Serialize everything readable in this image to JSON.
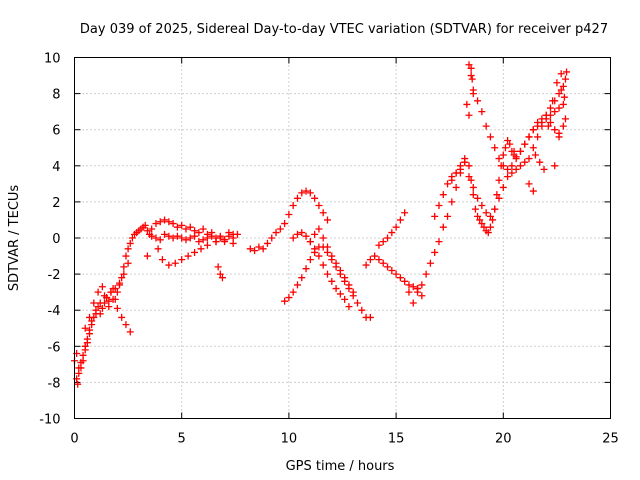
{
  "chart_data": {
    "type": "scatter",
    "title": "Day 039 of 2025, Sidereal Day-to-day VTEC variation (SDTVAR) for receiver p427",
    "xlabel": "GPS time / hours",
    "ylabel": "SDTVAR / TECUs",
    "xlim": [
      0,
      25
    ],
    "ylim": [
      -10,
      10
    ],
    "xticks": [
      "0",
      "5",
      "10",
      "15",
      "20",
      "25"
    ],
    "yticks": [
      "-10",
      "-8",
      "-6",
      "-4",
      "-2",
      "0",
      "2",
      "4",
      "6",
      "8",
      "10"
    ],
    "grid": true,
    "marker": "+",
    "color": "#ff0000",
    "series": [
      {
        "name": "SDTVAR",
        "x": [
          0.0,
          0.1,
          0.15,
          0.2,
          0.3,
          0.4,
          0.5,
          0.6,
          0.7,
          0.8,
          0.9,
          1.0,
          1.1,
          1.2,
          1.3,
          1.4,
          1.5,
          1.6,
          1.7,
          1.8,
          1.9,
          2.0,
          2.1,
          2.2,
          2.3,
          2.4,
          2.5,
          2.6,
          2.7,
          2.8,
          2.9,
          3.0,
          3.1,
          3.2,
          3.3,
          3.4,
          3.5,
          3.6,
          3.8,
          4.0,
          4.2,
          4.4,
          4.6,
          4.8,
          5.0,
          5.2,
          5.4,
          5.6,
          5.8,
          6.0,
          6.2,
          6.4,
          6.6,
          6.8,
          7.0,
          7.2,
          7.4,
          7.6,
          0.1,
          0.2,
          0.3,
          0.4,
          0.5,
          0.6,
          0.7,
          0.8,
          1.0,
          1.2,
          1.4,
          1.6,
          1.8,
          2.0,
          2.2,
          2.4,
          2.6,
          0.5,
          0.7,
          0.9,
          1.1,
          1.3,
          1.5,
          1.7,
          1.9,
          2.1,
          2.3,
          2.5,
          3.6,
          3.8,
          4.0,
          4.2,
          4.4,
          4.6,
          4.8,
          5.0,
          5.2,
          5.4,
          5.6,
          5.8,
          6.0,
          6.2,
          6.4,
          6.6,
          6.8,
          7.0,
          7.2,
          7.4,
          3.4,
          3.9,
          4.1,
          4.4,
          4.7,
          5.0,
          5.3,
          5.6,
          5.9,
          6.2,
          6.6,
          7.0,
          7.4,
          6.7,
          6.8,
          6.9,
          8.2,
          8.4,
          8.6,
          8.8,
          9.0,
          9.2,
          9.4,
          9.6,
          9.8,
          10.0,
          10.2,
          10.4,
          10.6,
          10.8,
          11.0,
          11.2,
          11.4,
          11.6,
          11.8,
          9.8,
          10.0,
          10.2,
          10.4,
          10.6,
          10.8,
          11.0,
          11.2,
          11.4,
          11.6,
          11.8,
          12.0,
          12.2,
          12.4,
          12.6,
          12.8,
          13.0,
          13.2,
          13.4,
          13.6,
          13.8,
          10.2,
          10.4,
          10.6,
          10.8,
          11.0,
          11.2,
          11.4,
          11.6,
          11.8,
          12.0,
          12.2,
          12.4,
          12.6,
          12.8,
          11.0,
          11.2,
          11.4,
          11.6,
          11.8,
          12.0,
          12.2,
          12.4,
          12.6,
          12.8,
          13.0,
          13.6,
          13.8,
          14.0,
          14.2,
          14.4,
          14.6,
          14.8,
          15.0,
          15.2,
          15.4,
          15.6,
          15.8,
          16.0,
          16.2,
          14.2,
          14.4,
          14.6,
          14.8,
          15.0,
          15.2,
          15.4,
          15.6,
          15.8,
          16.0,
          16.0,
          16.2,
          16.4,
          16.6,
          16.8,
          17.0,
          17.2,
          17.4,
          17.6,
          17.8,
          18.0,
          18.2,
          16.8,
          17.0,
          17.2,
          17.4,
          17.6,
          17.8,
          18.0,
          18.2,
          18.4,
          18.5,
          18.6,
          18.7,
          18.8,
          18.9,
          19.0,
          19.1,
          19.2,
          19.3,
          19.4,
          19.5,
          19.6,
          19.7,
          19.8,
          19.9,
          20.0,
          20.1,
          20.2,
          20.3,
          20.4,
          20.5,
          20.6,
          20.8,
          21.0,
          21.2,
          21.4,
          21.6,
          21.8,
          22.0,
          22.2,
          22.4,
          22.6,
          22.8,
          22.9,
          18.4,
          18.5,
          18.6,
          18.8,
          19.0,
          19.2,
          19.4,
          19.6,
          19.8,
          20.0,
          20.2,
          20.4,
          20.6,
          20.8,
          21.0,
          21.2,
          21.4,
          21.6,
          21.8,
          22.0,
          22.2,
          22.4,
          22.6,
          22.8,
          17.6,
          17.8,
          18.0,
          18.2,
          18.4,
          18.6,
          18.8,
          19.0,
          19.2,
          19.4,
          19.6,
          19.8,
          20.0,
          20.2,
          20.4,
          20.6,
          20.8,
          21.0,
          21.2,
          21.4,
          21.6,
          21.8,
          22.0,
          22.2,
          22.4,
          22.6,
          22.8,
          18.5,
          18.55,
          18.6,
          21.5,
          21.7,
          21.9,
          22.1,
          22.3,
          22.5,
          22.7,
          22.9,
          22.95,
          18.3,
          18.4,
          20.5,
          21.2,
          21.4,
          22.4,
          22.6,
          22.7,
          22.85
        ],
        "y": [
          -6.8,
          -7.8,
          -8.1,
          -7.5,
          -7.2,
          -6.8,
          -6.2,
          -5.8,
          -5.3,
          -4.8,
          -4.4,
          -4.0,
          -3.8,
          -4.2,
          -3.9,
          -3.6,
          -3.3,
          -3.5,
          -3.0,
          -2.8,
          -3.4,
          -3.0,
          -2.6,
          -2.2,
          -1.6,
          -1.0,
          -0.6,
          -0.3,
          0.0,
          0.2,
          0.3,
          0.4,
          0.5,
          0.6,
          0.7,
          0.4,
          0.2,
          0.1,
          0.0,
          -0.1,
          0.2,
          0.1,
          0.0,
          0.1,
          0.0,
          -0.1,
          0.0,
          0.1,
          -0.2,
          -0.1,
          0.0,
          0.1,
          -0.2,
          0.0,
          -0.1,
          0.1,
          0.0,
          0.2,
          -6.4,
          -7.2,
          -6.9,
          -6.5,
          -6.0,
          -5.6,
          -5.1,
          -4.6,
          -4.2,
          -3.6,
          -3.2,
          -3.8,
          -3.4,
          -3.9,
          -4.4,
          -4.8,
          -5.2,
          -5.0,
          -4.4,
          -3.6,
          -3.0,
          -2.7,
          -3.3,
          -3.0,
          -2.8,
          -2.5,
          -2.0,
          -1.4,
          0.5,
          0.8,
          0.9,
          1.0,
          0.9,
          0.8,
          0.6,
          0.7,
          0.5,
          0.6,
          0.4,
          0.3,
          0.5,
          0.2,
          0.3,
          0.0,
          0.1,
          -0.2,
          0.3,
          0.2,
          -1.0,
          -0.6,
          -1.2,
          -1.5,
          -1.4,
          -1.2,
          -1.0,
          -0.8,
          -0.6,
          -0.4,
          -0.2,
          -0.1,
          -0.3,
          -1.6,
          -2.0,
          -2.2,
          -0.6,
          -0.7,
          -0.5,
          -0.6,
          -0.3,
          0.0,
          0.3,
          0.5,
          0.8,
          1.3,
          1.8,
          2.2,
          2.5,
          2.6,
          2.5,
          2.2,
          1.8,
          1.4,
          1.0,
          -3.5,
          -3.3,
          -3.0,
          -2.6,
          -2.2,
          -1.7,
          -1.2,
          -0.8,
          -0.5,
          -0.5,
          -0.8,
          -1.2,
          -1.6,
          -2.0,
          -2.4,
          -2.8,
          -3.2,
          -3.6,
          -4.0,
          -4.4,
          -4.4,
          0.0,
          0.2,
          0.3,
          0.1,
          -0.2,
          -0.6,
          -1.0,
          -1.5,
          -2.0,
          -2.4,
          -2.8,
          -3.1,
          -3.4,
          -3.8,
          -0.2,
          0.2,
          0.5,
          0.0,
          -0.5,
          -1.0,
          -1.4,
          -1.8,
          -2.2,
          -2.6,
          -3.0,
          -1.5,
          -1.2,
          -1.0,
          -1.2,
          -1.4,
          -1.6,
          -1.8,
          -2.0,
          -2.2,
          -2.4,
          -2.6,
          -2.7,
          -2.8,
          -3.2,
          -0.4,
          -0.2,
          0.0,
          0.3,
          0.6,
          1.0,
          1.4,
          -3.0,
          -3.6,
          -2.8,
          -3.0,
          -2.6,
          -2.0,
          -1.4,
          -0.8,
          -0.2,
          0.6,
          1.2,
          2.0,
          2.8,
          3.6,
          4.2,
          1.2,
          1.8,
          2.4,
          3.0,
          3.4,
          3.6,
          3.8,
          4.2,
          4.0,
          3.2,
          2.4,
          1.6,
          1.2,
          1.0,
          0.8,
          0.6,
          0.4,
          0.3,
          0.6,
          1.0,
          1.6,
          2.4,
          3.2,
          4.0,
          4.6,
          5.0,
          5.4,
          5.2,
          4.8,
          4.6,
          4.5,
          4.8,
          5.2,
          5.6,
          6.0,
          6.4,
          6.6,
          6.8,
          6.4,
          6.0,
          5.8,
          6.2,
          6.6,
          9.6,
          9.0,
          8.2,
          7.6,
          7.0,
          6.2,
          5.6,
          5.0,
          4.4,
          4.0,
          3.8,
          3.6,
          3.8,
          4.0,
          4.2,
          4.4,
          5.0,
          5.6,
          6.2,
          6.8,
          7.2,
          7.6,
          8.0,
          8.4,
          3.2,
          3.6,
          4.0,
          4.4,
          3.4,
          2.8,
          2.2,
          1.8,
          1.4,
          1.2,
          1.6,
          2.2,
          2.8,
          3.4,
          4.0,
          4.4,
          4.8,
          5.2,
          5.6,
          6.0,
          6.2,
          6.4,
          6.6,
          6.8,
          7.0,
          7.2,
          7.4,
          9.4,
          8.8,
          8.0,
          4.6,
          4.2,
          3.8,
          6.2,
          7.6,
          8.6,
          9.1,
          8.8,
          9.2,
          7.4,
          6.8,
          4.8,
          3.0,
          2.6,
          4.0,
          5.6,
          8.2,
          7.8
        ]
      }
    ]
  }
}
